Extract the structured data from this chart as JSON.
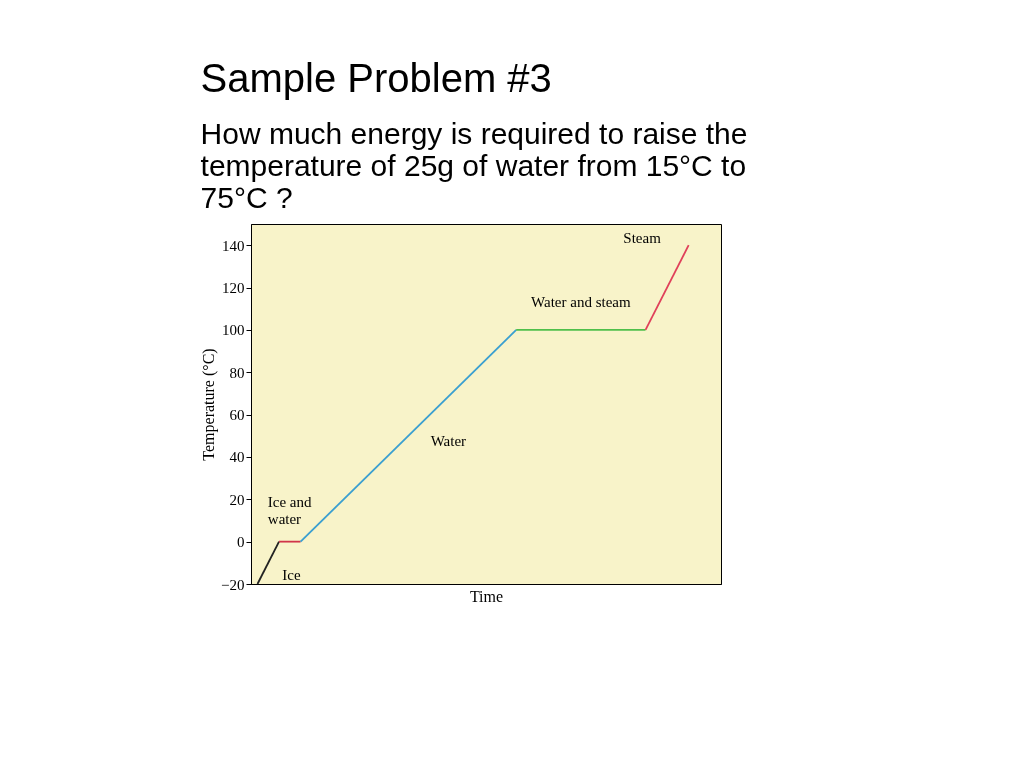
{
  "chart_data": {
    "type": "line",
    "title": "Sample Problem #3",
    "subtitle": "How much energy is required to raise the temperature of 25g of water from 15°C to 75°C ?",
    "xlabel": "Time",
    "ylabel": "Temperature (°C)",
    "categories": [
      null,
      null,
      null,
      null,
      null,
      null,
      null,
      null,
      null,
      null,
      null,
      null,
      null,
      null,
      null,
      null,
      null,
      null,
      null,
      null,
      null,
      null
    ],
    "series": [
      {
        "name": "Ice",
        "color": "#222222",
        "values": [
          -20,
          0,
          null,
          null,
          null,
          null,
          null,
          null,
          null,
          null,
          null,
          null,
          null,
          null,
          null,
          null,
          null,
          null,
          null,
          null,
          null,
          null
        ]
      },
      {
        "name": "Ice and water",
        "color": "#d0354a",
        "values": [
          null,
          0,
          0,
          null,
          null,
          null,
          null,
          null,
          null,
          null,
          null,
          null,
          null,
          null,
          null,
          null,
          null,
          null,
          null,
          null,
          null,
          null
        ]
      },
      {
        "name": "Water",
        "color": "#3a9fd0",
        "values": [
          null,
          null,
          0,
          null,
          null,
          null,
          null,
          null,
          null,
          null,
          null,
          null,
          100,
          null,
          null,
          null,
          null,
          null,
          null,
          null,
          null,
          null
        ]
      },
      {
        "name": "Water and steam",
        "color": "#4fbf4a",
        "values": [
          null,
          null,
          null,
          null,
          null,
          null,
          null,
          null,
          null,
          null,
          null,
          null,
          100,
          null,
          null,
          null,
          null,
          null,
          100,
          null,
          null,
          null
        ]
      },
      {
        "name": "Steam",
        "color": "#e0405a",
        "values": [
          null,
          null,
          null,
          null,
          null,
          null,
          null,
          null,
          null,
          null,
          null,
          null,
          null,
          null,
          null,
          null,
          null,
          null,
          100,
          null,
          140,
          null
        ]
      }
    ],
    "ylim": [
      -20,
      150
    ],
    "yticks": [
      -20,
      0,
      20,
      40,
      60,
      80,
      100,
      120,
      140
    ],
    "grid": false,
    "legend": false,
    "tick_labels": "y",
    "marker": "none",
    "line_style": "solid"
  }
}
